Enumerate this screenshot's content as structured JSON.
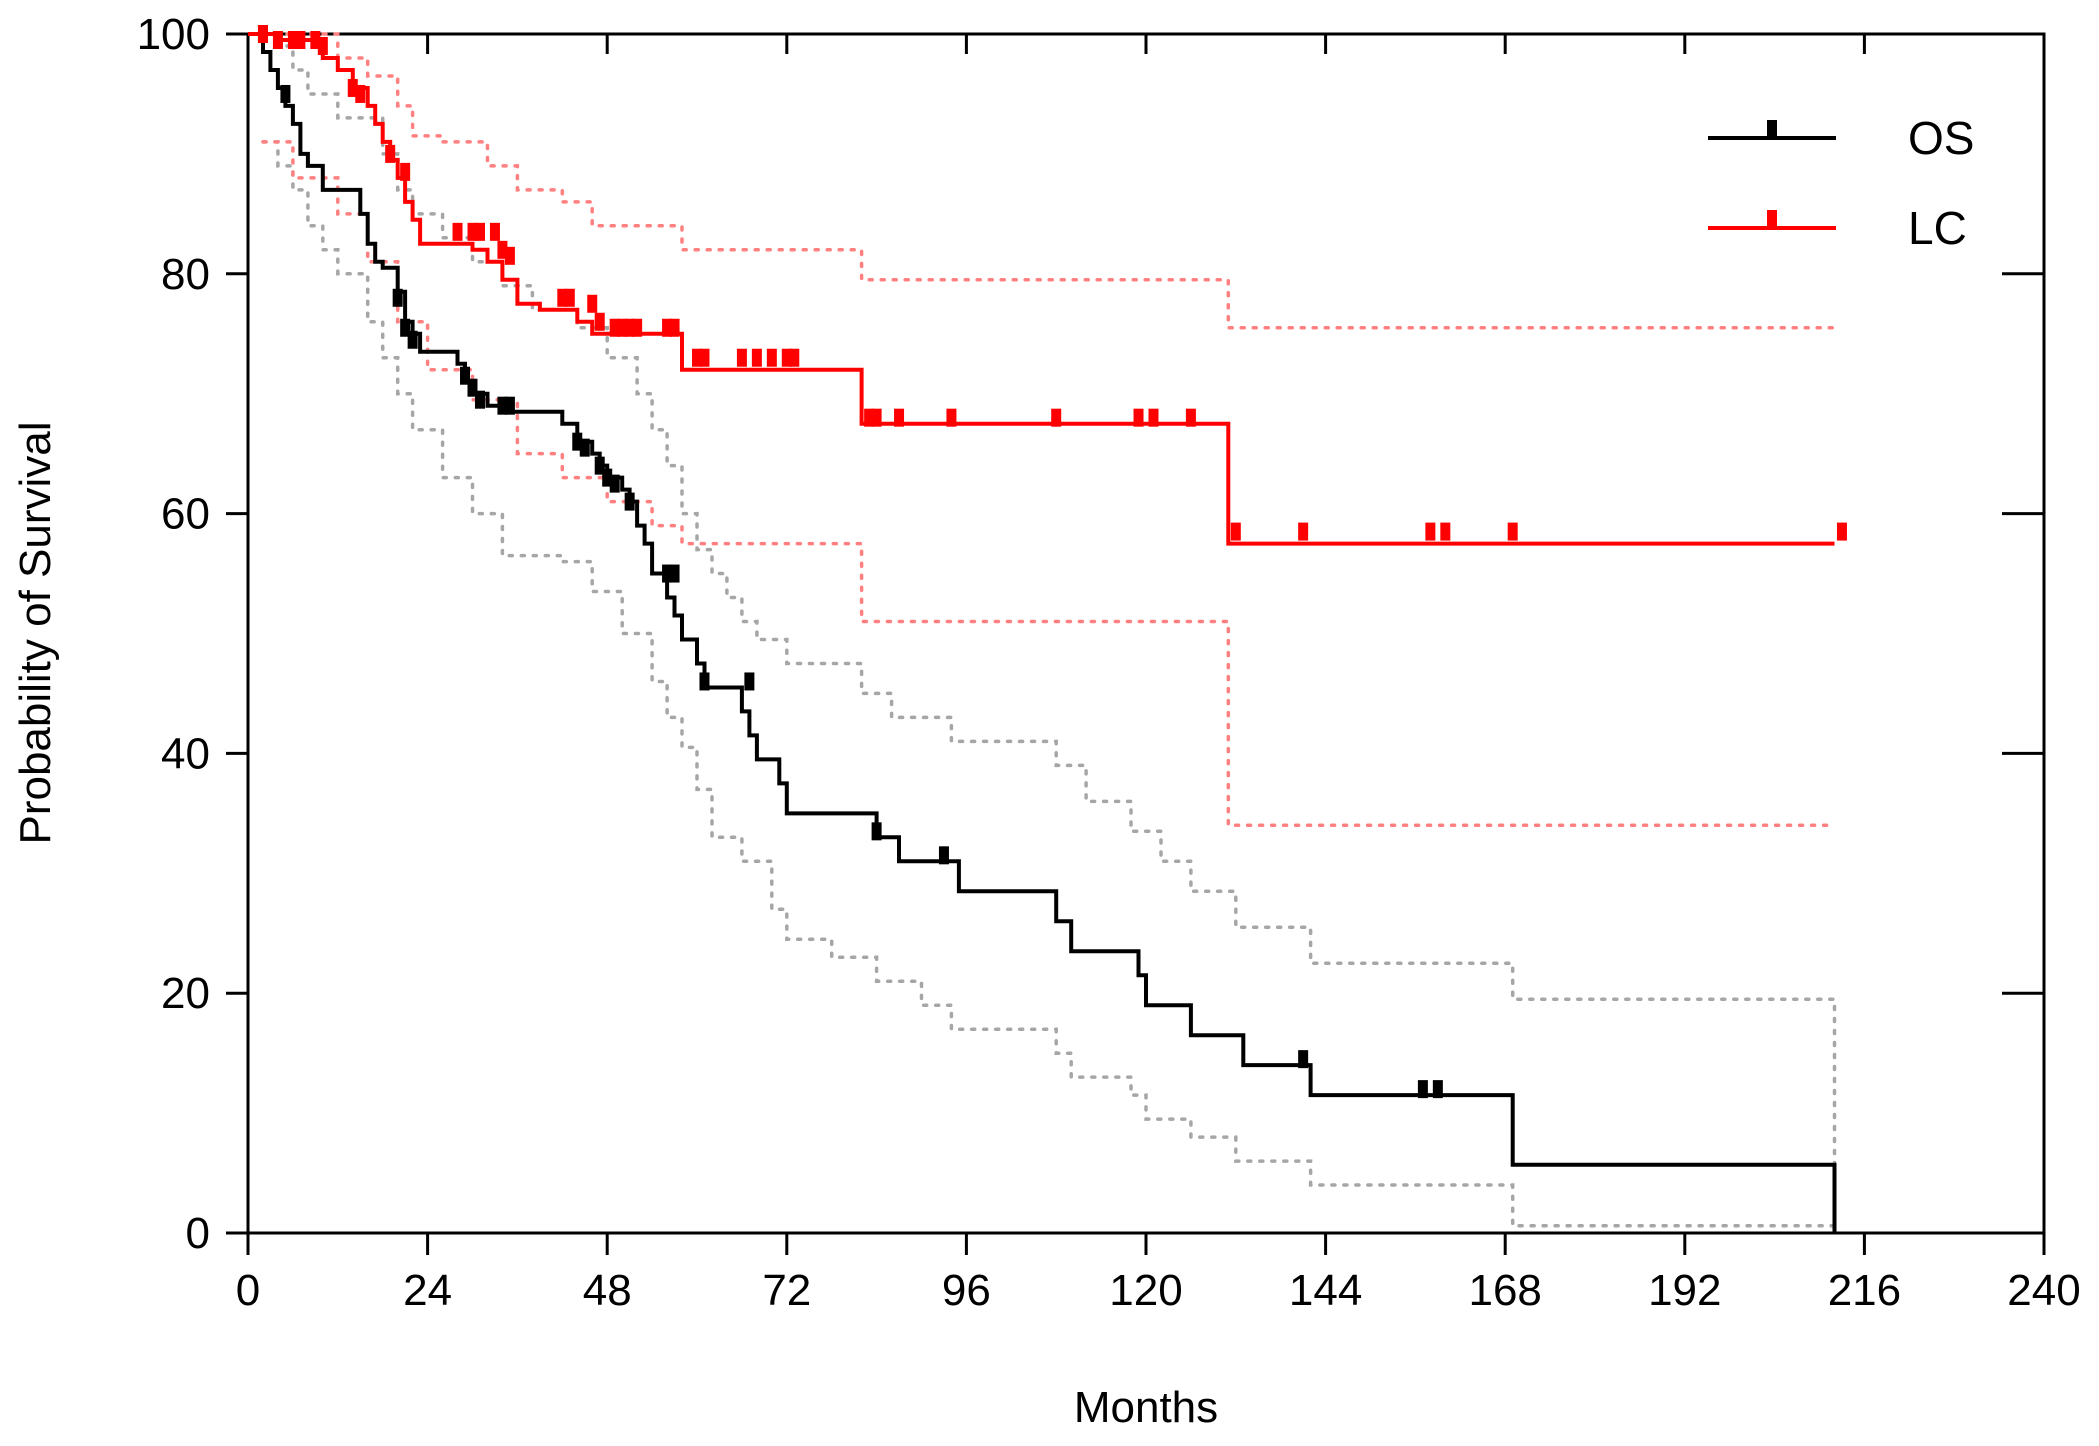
{
  "chart_data": {
    "type": "line",
    "subtype": "kaplan-meier step curves with 95% confidence bands",
    "xlabel": "Months",
    "ylabel": "Probability of Survival",
    "xlim": [
      0,
      240
    ],
    "ylim": [
      0,
      100
    ],
    "xticks": [
      0,
      24,
      48,
      72,
      96,
      120,
      144,
      168,
      192,
      216,
      240
    ],
    "yticks": [
      0,
      20,
      40,
      60,
      80,
      100
    ],
    "legend_placement": "top-right",
    "grid": false,
    "colors": {
      "OS": "#000000",
      "LC": "#ff0000",
      "OS_ci": "#a6a6a6",
      "LC_ci": "#ff8080"
    },
    "series": [
      {
        "name": "OS",
        "steps": [
          [
            0,
            100
          ],
          [
            2,
            98.5
          ],
          [
            3,
            97
          ],
          [
            4,
            95.5
          ],
          [
            5,
            94
          ],
          [
            6,
            92.5
          ],
          [
            7,
            90
          ],
          [
            8,
            89
          ],
          [
            10,
            87
          ],
          [
            15,
            85
          ],
          [
            16,
            82.5
          ],
          [
            17,
            81
          ],
          [
            18,
            80.5
          ],
          [
            20,
            78.5
          ],
          [
            21,
            76
          ],
          [
            22,
            75
          ],
          [
            23,
            73.5
          ],
          [
            28,
            72.5
          ],
          [
            29,
            71
          ],
          [
            30,
            70
          ],
          [
            32,
            69
          ],
          [
            34,
            68.5
          ],
          [
            42,
            67.5
          ],
          [
            44,
            66
          ],
          [
            46,
            65
          ],
          [
            47,
            64
          ],
          [
            48,
            63
          ],
          [
            50,
            62
          ],
          [
            51,
            61
          ],
          [
            52,
            59
          ],
          [
            53,
            57.5
          ],
          [
            54,
            55
          ],
          [
            56,
            53
          ],
          [
            57,
            51.5
          ],
          [
            58,
            49.5
          ],
          [
            60,
            47.5
          ],
          [
            61,
            45.5
          ],
          [
            66,
            43.5
          ],
          [
            67,
            41.5
          ],
          [
            68,
            39.5
          ],
          [
            71,
            37.5
          ],
          [
            72,
            35
          ],
          [
            84,
            33
          ],
          [
            87,
            31
          ],
          [
            95,
            28.5
          ],
          [
            108,
            26
          ],
          [
            110,
            23.5
          ],
          [
            119,
            21.5
          ],
          [
            120,
            19
          ],
          [
            126,
            16.5
          ],
          [
            133,
            14
          ],
          [
            142,
            11.5
          ],
          [
            169,
            5.7
          ],
          [
            212,
            5.7
          ],
          [
            212,
            0
          ]
        ],
        "censored": [
          [
            2,
            100
          ],
          [
            5,
            95
          ],
          [
            20,
            78
          ],
          [
            21,
            75.5
          ],
          [
            22,
            74.5
          ],
          [
            29,
            71.5
          ],
          [
            30,
            70.5
          ],
          [
            31,
            69.5
          ],
          [
            34,
            69
          ],
          [
            35,
            69
          ],
          [
            44,
            66
          ],
          [
            45,
            65.5
          ],
          [
            47,
            64
          ],
          [
            48,
            63
          ],
          [
            49,
            62.5
          ],
          [
            51,
            61
          ],
          [
            56,
            55
          ],
          [
            57,
            55
          ],
          [
            61,
            46
          ],
          [
            67,
            46
          ],
          [
            84,
            33.5
          ],
          [
            93,
            31.5
          ],
          [
            141,
            14.5
          ],
          [
            157,
            12
          ],
          [
            159,
            12
          ],
          [
            205,
            91
          ]
        ],
        "ci_upper": [
          [
            2,
            100
          ],
          [
            4,
            99
          ],
          [
            6,
            97
          ],
          [
            8,
            95
          ],
          [
            12,
            93
          ],
          [
            18,
            90
          ],
          [
            20,
            87
          ],
          [
            22,
            85
          ],
          [
            26,
            83
          ],
          [
            30,
            81
          ],
          [
            34,
            79
          ],
          [
            38,
            77
          ],
          [
            44,
            75.5
          ],
          [
            48,
            73
          ],
          [
            52,
            70
          ],
          [
            54,
            67
          ],
          [
            56,
            64
          ],
          [
            58,
            60
          ],
          [
            60,
            57
          ],
          [
            62,
            55
          ],
          [
            64,
            53
          ],
          [
            66,
            51
          ],
          [
            68,
            49.5
          ],
          [
            72,
            47.5
          ],
          [
            82,
            45
          ],
          [
            86,
            43
          ],
          [
            94,
            41
          ],
          [
            108,
            39
          ],
          [
            112,
            36
          ],
          [
            118,
            33.5
          ],
          [
            122,
            31
          ],
          [
            126,
            28.5
          ],
          [
            132,
            25.5
          ],
          [
            142,
            22.5
          ],
          [
            169,
            19.5
          ],
          [
            212,
            19.5
          ],
          [
            212,
            0
          ]
        ],
        "ci_lower": [
          [
            2,
            91
          ],
          [
            4,
            89
          ],
          [
            6,
            87
          ],
          [
            8,
            84
          ],
          [
            10,
            82
          ],
          [
            12,
            80
          ],
          [
            16,
            76
          ],
          [
            18,
            73
          ],
          [
            20,
            70
          ],
          [
            22,
            67
          ],
          [
            26,
            63
          ],
          [
            30,
            60
          ],
          [
            34,
            56.5
          ],
          [
            42,
            56
          ],
          [
            46,
            53.5
          ],
          [
            50,
            50
          ],
          [
            54,
            46
          ],
          [
            56,
            43
          ],
          [
            58,
            40.5
          ],
          [
            60,
            37
          ],
          [
            62,
            33
          ],
          [
            66,
            31
          ],
          [
            70,
            27
          ],
          [
            72,
            24.5
          ],
          [
            78,
            23
          ],
          [
            84,
            21
          ],
          [
            90,
            19
          ],
          [
            94,
            17
          ],
          [
            108,
            15
          ],
          [
            110,
            13
          ],
          [
            118,
            11.5
          ],
          [
            120,
            9.5
          ],
          [
            126,
            8
          ],
          [
            132,
            6
          ],
          [
            142,
            4
          ],
          [
            169,
            0.6
          ],
          [
            212,
            0.6
          ]
        ]
      },
      {
        "name": "LC",
        "steps": [
          [
            0,
            100
          ],
          [
            2,
            100
          ],
          [
            4,
            99.5
          ],
          [
            9,
            99
          ],
          [
            10,
            98
          ],
          [
            12,
            97
          ],
          [
            14,
            95.5
          ],
          [
            16,
            94
          ],
          [
            17,
            92.5
          ],
          [
            18,
            91
          ],
          [
            19,
            89.5
          ],
          [
            20,
            88
          ],
          [
            21,
            86
          ],
          [
            22,
            84.5
          ],
          [
            23,
            82.5
          ],
          [
            30,
            82
          ],
          [
            32,
            81
          ],
          [
            34,
            79.5
          ],
          [
            36,
            77.5
          ],
          [
            39,
            77
          ],
          [
            44,
            76
          ],
          [
            46,
            75
          ],
          [
            58,
            72
          ],
          [
            82,
            67.5
          ],
          [
            131,
            57.5
          ],
          [
            212,
            57.5
          ]
        ],
        "censored": [
          [
            2,
            100
          ],
          [
            4,
            99.5
          ],
          [
            6,
            99.5
          ],
          [
            7,
            99.5
          ],
          [
            9,
            99.5
          ],
          [
            10,
            99
          ],
          [
            14,
            95.5
          ],
          [
            15,
            95
          ],
          [
            19,
            90
          ],
          [
            21,
            88.5
          ],
          [
            28,
            83.5
          ],
          [
            30,
            83.5
          ],
          [
            31,
            83.5
          ],
          [
            33,
            83.5
          ],
          [
            34,
            82
          ],
          [
            35,
            81.5
          ],
          [
            42,
            78
          ],
          [
            43,
            78
          ],
          [
            46,
            77.5
          ],
          [
            47,
            76
          ],
          [
            49,
            75.5
          ],
          [
            50,
            75.5
          ],
          [
            51,
            75.5
          ],
          [
            52,
            75.5
          ],
          [
            56,
            75.5
          ],
          [
            57,
            75.5
          ],
          [
            60,
            73
          ],
          [
            61,
            73
          ],
          [
            66,
            73
          ],
          [
            68,
            73
          ],
          [
            70,
            73
          ],
          [
            72,
            73
          ],
          [
            73,
            73
          ],
          [
            83,
            68
          ],
          [
            84,
            68
          ],
          [
            87,
            68
          ],
          [
            94,
            68
          ],
          [
            108,
            68
          ],
          [
            119,
            68
          ],
          [
            121,
            68
          ],
          [
            126,
            68
          ],
          [
            132,
            58.5
          ],
          [
            141,
            58.5
          ],
          [
            158,
            58.5
          ],
          [
            160,
            58.5
          ],
          [
            169,
            58.5
          ],
          [
            213,
            58.5
          ],
          [
            204,
            84
          ]
        ],
        "ci_upper": [
          [
            2,
            100
          ],
          [
            8,
            100
          ],
          [
            12,
            98
          ],
          [
            16,
            96.5
          ],
          [
            20,
            94
          ],
          [
            22,
            91.5
          ],
          [
            26,
            91
          ],
          [
            32,
            89
          ],
          [
            36,
            87
          ],
          [
            42,
            86
          ],
          [
            46,
            84
          ],
          [
            52,
            84
          ],
          [
            58,
            82
          ],
          [
            82,
            79.5
          ],
          [
            131,
            75.5
          ],
          [
            212,
            75.5
          ]
        ],
        "ci_lower": [
          [
            2,
            91
          ],
          [
            6,
            88
          ],
          [
            12,
            85
          ],
          [
            16,
            81
          ],
          [
            20,
            76
          ],
          [
            24,
            72
          ],
          [
            30,
            69.5
          ],
          [
            36,
            65
          ],
          [
            42,
            63
          ],
          [
            48,
            61
          ],
          [
            54,
            59
          ],
          [
            58,
            57.5
          ],
          [
            82,
            51
          ],
          [
            131,
            34
          ],
          [
            212,
            34
          ]
        ]
      }
    ]
  }
}
